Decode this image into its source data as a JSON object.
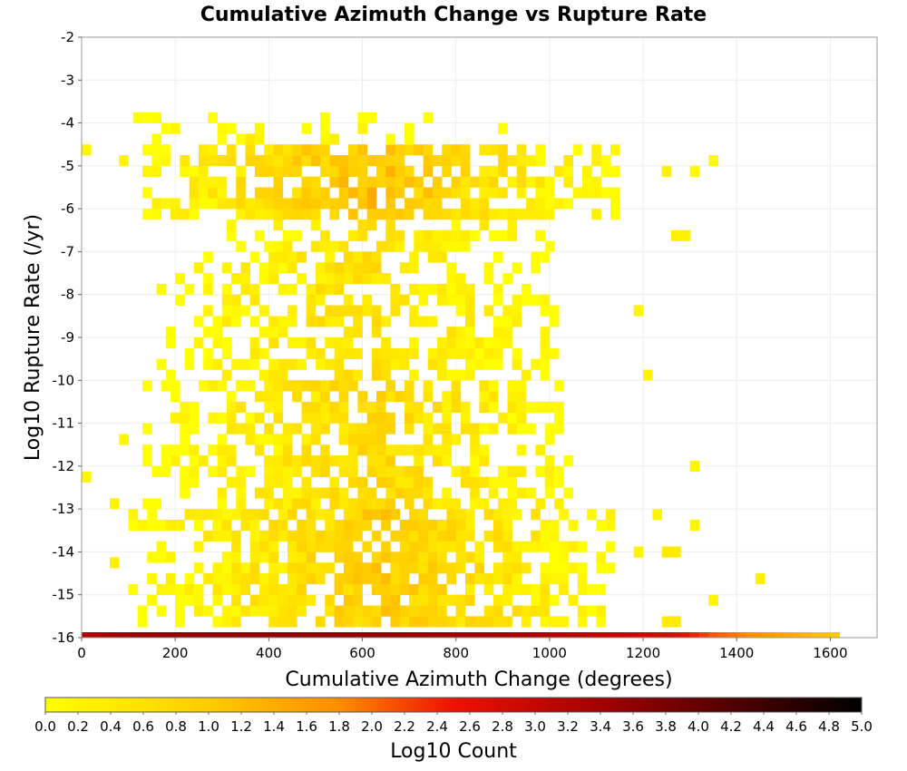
{
  "chart_data": {
    "type": "heatmap",
    "title": "Cumulative Azimuth Change vs Rupture Rate",
    "xlabel": "Cumulative Azimuth Change (degrees)",
    "ylabel": "Log10 Rupture Rate (/yr)",
    "colorbar_label": "Log10 Count",
    "xlim": [
      0,
      1700
    ],
    "ylim": [
      -16,
      -2
    ],
    "x_ticks": [
      0,
      200,
      400,
      600,
      800,
      1000,
      1200,
      1400,
      1600
    ],
    "y_ticks": [
      -2,
      -3,
      -4,
      -5,
      -6,
      -7,
      -8,
      -9,
      -10,
      -11,
      -12,
      -13,
      -14,
      -15,
      -16
    ],
    "colorbar_range": [
      0.0,
      5.0
    ],
    "colorbar_ticks": [
      "0.0",
      "0.2",
      "0.4",
      "0.6",
      "0.8",
      "1.0",
      "1.2",
      "1.4",
      "1.6",
      "1.8",
      "2.0",
      "2.2",
      "2.4",
      "2.6",
      "2.8",
      "3.0",
      "3.2",
      "3.4",
      "3.6",
      "3.8",
      "4.0",
      "4.2",
      "4.4",
      "4.6",
      "4.8",
      "5.0"
    ],
    "colorscale": [
      "#ffff00",
      "#ffcc00",
      "#ff8c00",
      "#ee1100",
      "#990000",
      "#000000"
    ],
    "grid": true,
    "colorbar_position": "bottom",
    "bin_size": {
      "x": 20,
      "y": 0.25
    },
    "bottom_row": {
      "y": -15.875,
      "x_start": -30,
      "x_end": 1620,
      "bin_width": 20,
      "log10_count_ramp": [
        {
          "x": -30,
          "v": 3.1
        },
        {
          "x": 100,
          "v": 3.5
        },
        {
          "x": 300,
          "v": 3.6
        },
        {
          "x": 600,
          "v": 3.6
        },
        {
          "x": 900,
          "v": 3.4
        },
        {
          "x": 1100,
          "v": 3.1
        },
        {
          "x": 1260,
          "v": 2.8
        },
        {
          "x": 1350,
          "v": 2.1
        },
        {
          "x": 1450,
          "v": 1.7
        },
        {
          "x": 1620,
          "v": 1.0
        }
      ]
    },
    "density_rows": [
      {
        "y_min": -15.75,
        "y_max": -13.0,
        "x_min": 110,
        "x_max": 1130,
        "peak_x": 650,
        "fill": 0.82,
        "peak_log10_count": 1.25
      },
      {
        "y_min": -13.0,
        "y_max": -10.0,
        "x_min": 140,
        "x_max": 1050,
        "peak_x": 620,
        "fill": 0.72,
        "peak_log10_count": 1.05
      },
      {
        "y_min": -10.0,
        "y_max": -7.0,
        "x_min": 170,
        "x_max": 1020,
        "peak_x": 600,
        "fill": 0.62,
        "peak_log10_count": 0.95
      },
      {
        "y_min": -7.0,
        "y_max": -6.25,
        "x_min": 300,
        "x_max": 1000,
        "peak_x": 650,
        "fill": 0.55,
        "peak_log10_count": 0.9
      },
      {
        "y_min": -6.25,
        "y_max": -4.5,
        "x_min": 140,
        "x_max": 1140,
        "peak_x": 620,
        "fill": 0.8,
        "peak_log10_count": 1.45
      },
      {
        "y_min": -4.5,
        "y_max": -3.75,
        "x_min": 120,
        "x_max": 900,
        "peak_x": 400,
        "fill": 0.3,
        "peak_log10_count": 0.5
      }
    ],
    "isolated_cells": [
      {
        "x": 10,
        "y": -4.625,
        "log10_count": 0.2
      },
      {
        "x": 90,
        "y": -4.875,
        "log10_count": 0.2
      },
      {
        "x": 1250,
        "y": -5.125,
        "log10_count": 0.3
      },
      {
        "x": 1310,
        "y": -5.125,
        "log10_count": 0.1
      },
      {
        "x": 1350,
        "y": -4.875,
        "log10_count": 0.1
      },
      {
        "x": 1270,
        "y": -6.625,
        "log10_count": 0.3
      },
      {
        "x": 1290,
        "y": -6.625,
        "log10_count": 0.3
      },
      {
        "x": 1190,
        "y": -8.375,
        "log10_count": 0.2
      },
      {
        "x": 1210,
        "y": -9.875,
        "log10_count": 0.2
      },
      {
        "x": 90,
        "y": -11.375,
        "log10_count": 0.2
      },
      {
        "x": 10,
        "y": -12.25,
        "log10_count": 0.2
      },
      {
        "x": 1310,
        "y": -12.0,
        "log10_count": 0.2
      },
      {
        "x": 70,
        "y": -12.875,
        "log10_count": 0.2
      },
      {
        "x": 1230,
        "y": -13.125,
        "log10_count": 0.2
      },
      {
        "x": 1310,
        "y": -13.375,
        "log10_count": 0.2
      },
      {
        "x": 1190,
        "y": -14.0,
        "log10_count": 0.2
      },
      {
        "x": 1250,
        "y": -14.0,
        "log10_count": 0.4
      },
      {
        "x": 1270,
        "y": -14.0,
        "log10_count": 0.4
      },
      {
        "x": 70,
        "y": -14.25,
        "log10_count": 0.3
      },
      {
        "x": 1450,
        "y": -14.625,
        "log10_count": 0.3
      },
      {
        "x": 1350,
        "y": -15.125,
        "log10_count": 0.2
      },
      {
        "x": 1250,
        "y": -15.625,
        "log10_count": 0.4
      },
      {
        "x": 1270,
        "y": -15.625,
        "log10_count": 0.4
      }
    ]
  }
}
